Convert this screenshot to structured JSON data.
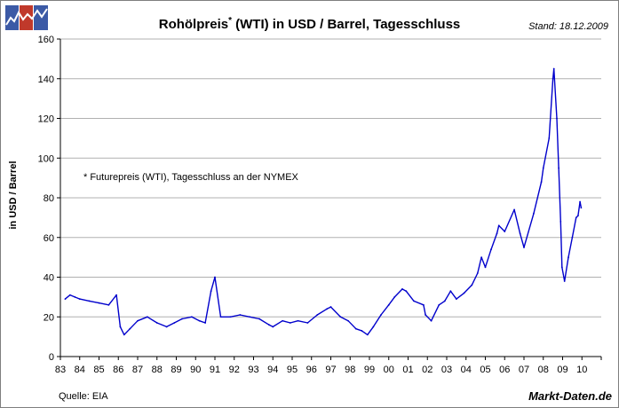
{
  "header": {
    "title_main": "Rohölpreis",
    "title_star": "*",
    "title_rest": " (WTI) in USD / Barrel, Tagesschluss",
    "stand": "Stand: 18.12.2009"
  },
  "annotation": "* Futurepreis (WTI), Tagesschluss an der NYMEX",
  "footer": {
    "source": "Quelle: EIA",
    "brand": "Markt-Daten.de"
  },
  "logo": {
    "colors": [
      "#3c5aa6",
      "#c0392b",
      "#3c5aa6"
    ]
  },
  "chart_data": {
    "type": "line",
    "title": "Rohölpreis* (WTI) in USD / Barrel, Tagesschluss",
    "ylabel": "in USD / Barrel",
    "xlabel": "",
    "ylim": [
      0,
      160
    ],
    "yticks": [
      0,
      20,
      40,
      60,
      80,
      100,
      120,
      140,
      160
    ],
    "xlim": [
      1983.0,
      2011.0
    ],
    "xtick_labels": [
      "83",
      "84",
      "85",
      "86",
      "87",
      "88",
      "89",
      "90",
      "91",
      "92",
      "93",
      "94",
      "95",
      "96",
      "97",
      "98",
      "99",
      "00",
      "01",
      "02",
      "03",
      "04",
      "05",
      "06",
      "07",
      "08",
      "09",
      "10"
    ],
    "grid": "horizontal",
    "line_color": "#0000cc",
    "series": [
      {
        "x": [
          1983.25,
          1983.5,
          1983.75,
          1984.0,
          1984.5,
          1985.0,
          1985.5,
          1985.9,
          1986.1,
          1986.3,
          1986.6,
          1987.0,
          1987.5,
          1988.0,
          1988.5,
          1988.9,
          1989.3,
          1989.8,
          1990.2,
          1990.5,
          1990.8,
          1991.0,
          1991.3,
          1991.8,
          1992.3,
          1992.8,
          1993.3,
          1993.8,
          1994.0,
          1994.5,
          1994.9,
          1995.3,
          1995.8,
          1996.3,
          1996.8,
          1997.0,
          1997.5,
          1997.9,
          1998.3,
          1998.6,
          1998.9,
          1999.2,
          1999.6,
          2000.0,
          2000.3,
          2000.7,
          2000.9,
          2001.3,
          2001.8,
          2001.9,
          2002.2,
          2002.6,
          2002.9,
          2003.2,
          2003.5,
          2003.9,
          2004.3,
          2004.6,
          2004.8,
          2005.0,
          2005.3,
          2005.6,
          2005.7,
          2006.0,
          2006.5,
          2006.8,
          2007.0,
          2007.5,
          2007.9,
          2008.0,
          2008.3,
          2008.5,
          2008.55,
          2008.7,
          2008.8,
          2008.9,
          2008.97,
          2009.1,
          2009.3,
          2009.5,
          2009.7,
          2009.8,
          2009.9,
          2009.96
        ],
        "y": [
          29,
          31,
          30,
          29,
          28,
          27,
          26,
          31,
          15,
          11,
          14,
          18,
          20,
          17,
          15,
          17,
          19,
          20,
          18,
          17,
          33,
          40,
          20,
          20,
          21,
          20,
          19,
          16,
          15,
          18,
          17,
          18,
          17,
          21,
          24,
          25,
          20,
          18,
          14,
          13,
          11,
          15,
          21,
          26,
          30,
          34,
          33,
          28,
          26,
          21,
          18,
          26,
          28,
          33,
          29,
          32,
          36,
          42,
          50,
          45,
          54,
          62,
          66,
          63,
          74,
          62,
          55,
          72,
          88,
          95,
          110,
          140,
          145,
          120,
          95,
          68,
          45,
          38,
          50,
          60,
          70,
          71,
          78,
          75
        ]
      }
    ]
  }
}
